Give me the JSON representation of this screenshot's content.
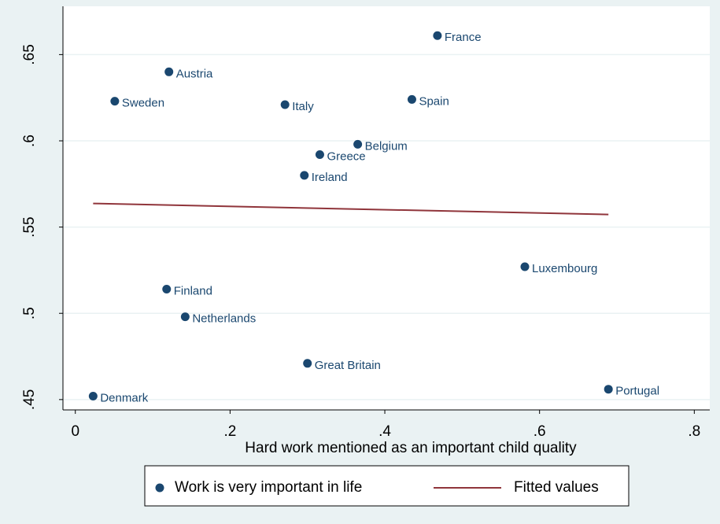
{
  "chart_data": {
    "type": "scatter",
    "x_label": "Hard work mentioned as an important child quality",
    "xlim": [
      -0.016,
      0.82
    ],
    "ylim": [
      0.444,
      0.678
    ],
    "xticks": [
      0,
      {
        "value": 0.2,
        "label": ".2"
      },
      {
        "value": 0.4,
        "label": ".4"
      },
      {
        "value": 0.6,
        "label": ".6"
      },
      {
        "value": 0.8,
        "label": ".8"
      }
    ],
    "yticks": [
      {
        "value": 0.45,
        "label": ".45"
      },
      {
        "value": 0.5,
        "label": ".5"
      },
      {
        "value": 0.55,
        "label": ".55"
      },
      {
        "value": 0.6,
        "label": ".6"
      },
      {
        "value": 0.65,
        "label": ".65"
      }
    ],
    "grid": true,
    "legend": "bottom",
    "series": [
      {
        "name": "Work is very important in life",
        "type": "scatter",
        "color": "#1a476f",
        "labels": [
          "Denmark",
          "Sweden",
          "Austria",
          "Finland",
          "Netherlands",
          "Italy",
          "Greece",
          "Ireland",
          "Great Britain",
          "Belgium",
          "Spain",
          "France",
          "Luxembourg",
          "Portugal"
        ],
        "x": [
          0.023,
          0.051,
          0.121,
          0.118,
          0.142,
          0.271,
          0.316,
          0.296,
          0.3,
          0.365,
          0.435,
          0.468,
          0.581,
          0.689
        ],
        "values": [
          0.452,
          0.623,
          0.64,
          0.514,
          0.498,
          0.621,
          0.592,
          0.58,
          0.471,
          0.598,
          0.624,
          0.661,
          0.527,
          0.456
        ]
      },
      {
        "name": "Fitted values",
        "type": "line",
        "color": "#90353b",
        "x": [
          0.023,
          0.689
        ],
        "values": [
          0.5637,
          0.5573
        ]
      }
    ]
  }
}
